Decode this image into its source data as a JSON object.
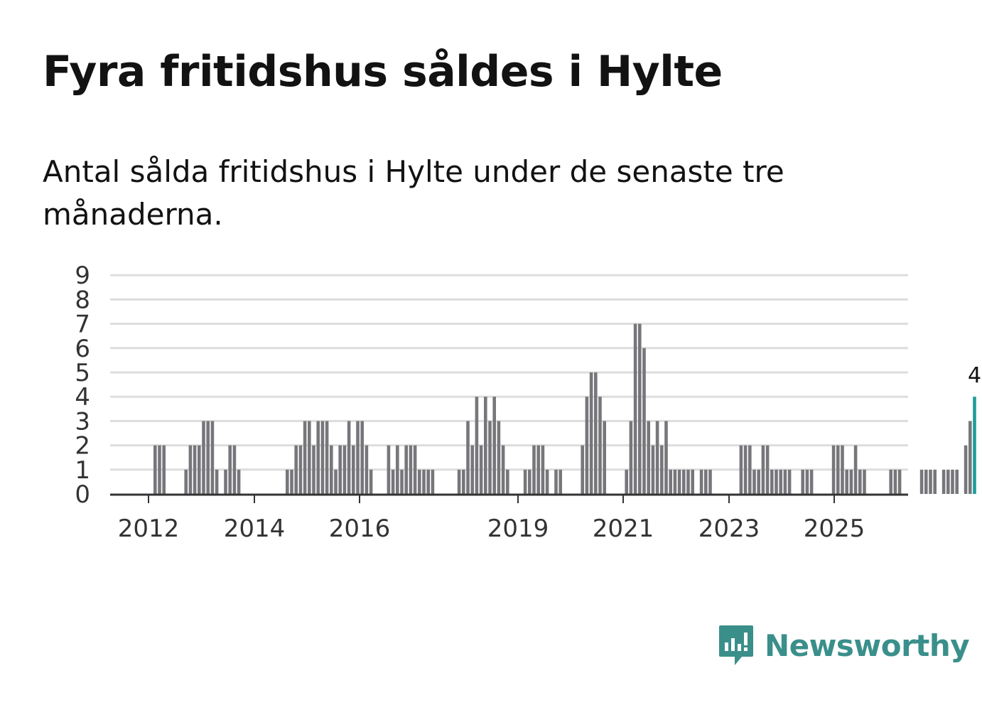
{
  "title": "Fyra fritidshus såldes i Hylte",
  "subtitle": "Antal sålda fritidshus i Hylte under de senaste tre månaderna.",
  "brand": "Newsworthy",
  "colors": {
    "bar": "#77767b",
    "highlight": "#1b9e99",
    "grid": "#dddddd",
    "axis": "#333333",
    "brand": "#3a8f8b"
  },
  "chart_data": {
    "type": "bar",
    "title": "Fyra fritidshus såldes i Hylte",
    "xlabel": "",
    "ylabel": "",
    "ylim": [
      0,
      9
    ],
    "yticks": [
      "0",
      "1",
      "2",
      "3",
      "4",
      "5",
      "6",
      "7",
      "8",
      "9"
    ],
    "xticks": [
      "2012",
      "2014",
      "2016",
      "2019",
      "2021",
      "2023",
      "2025"
    ],
    "grid": true,
    "highlight_label": "4",
    "values": [
      0,
      0,
      0,
      0,
      0,
      0,
      0,
      0,
      0,
      2,
      2,
      2,
      0,
      0,
      0,
      0,
      1,
      2,
      2,
      2,
      3,
      3,
      3,
      1,
      0,
      1,
      2,
      2,
      1,
      0,
      0,
      0,
      0,
      0,
      0,
      0,
      0,
      0,
      0,
      1,
      1,
      2,
      2,
      3,
      3,
      2,
      3,
      3,
      3,
      2,
      1,
      2,
      2,
      3,
      2,
      3,
      3,
      2,
      1,
      0,
      0,
      0,
      2,
      1,
      2,
      1,
      2,
      2,
      2,
      1,
      1,
      1,
      1,
      0,
      0,
      0,
      0,
      0,
      1,
      1,
      3,
      2,
      4,
      2,
      4,
      3,
      4,
      3,
      2,
      1,
      0,
      0,
      0,
      1,
      1,
      2,
      2,
      2,
      1,
      0,
      1,
      1,
      0,
      0,
      0,
      0,
      2,
      4,
      5,
      5,
      4,
      3,
      0,
      0,
      0,
      0,
      1,
      3,
      7,
      7,
      6,
      3,
      2,
      3,
      2,
      3,
      1,
      1,
      1,
      1,
      1,
      1,
      0,
      1,
      1,
      1,
      0,
      0,
      0,
      0,
      0,
      0,
      2,
      2,
      2,
      1,
      1,
      2,
      2,
      1,
      1,
      1,
      1,
      1,
      0,
      0,
      1,
      1,
      1,
      0,
      0,
      0,
      0,
      2,
      2,
      2,
      1,
      1,
      2,
      1,
      1,
      0,
      0,
      0,
      0,
      0,
      1,
      1,
      1,
      0,
      0,
      0,
      0,
      1,
      1,
      1,
      1,
      0,
      1,
      1,
      1,
      1,
      0,
      2,
      3,
      4
    ]
  }
}
